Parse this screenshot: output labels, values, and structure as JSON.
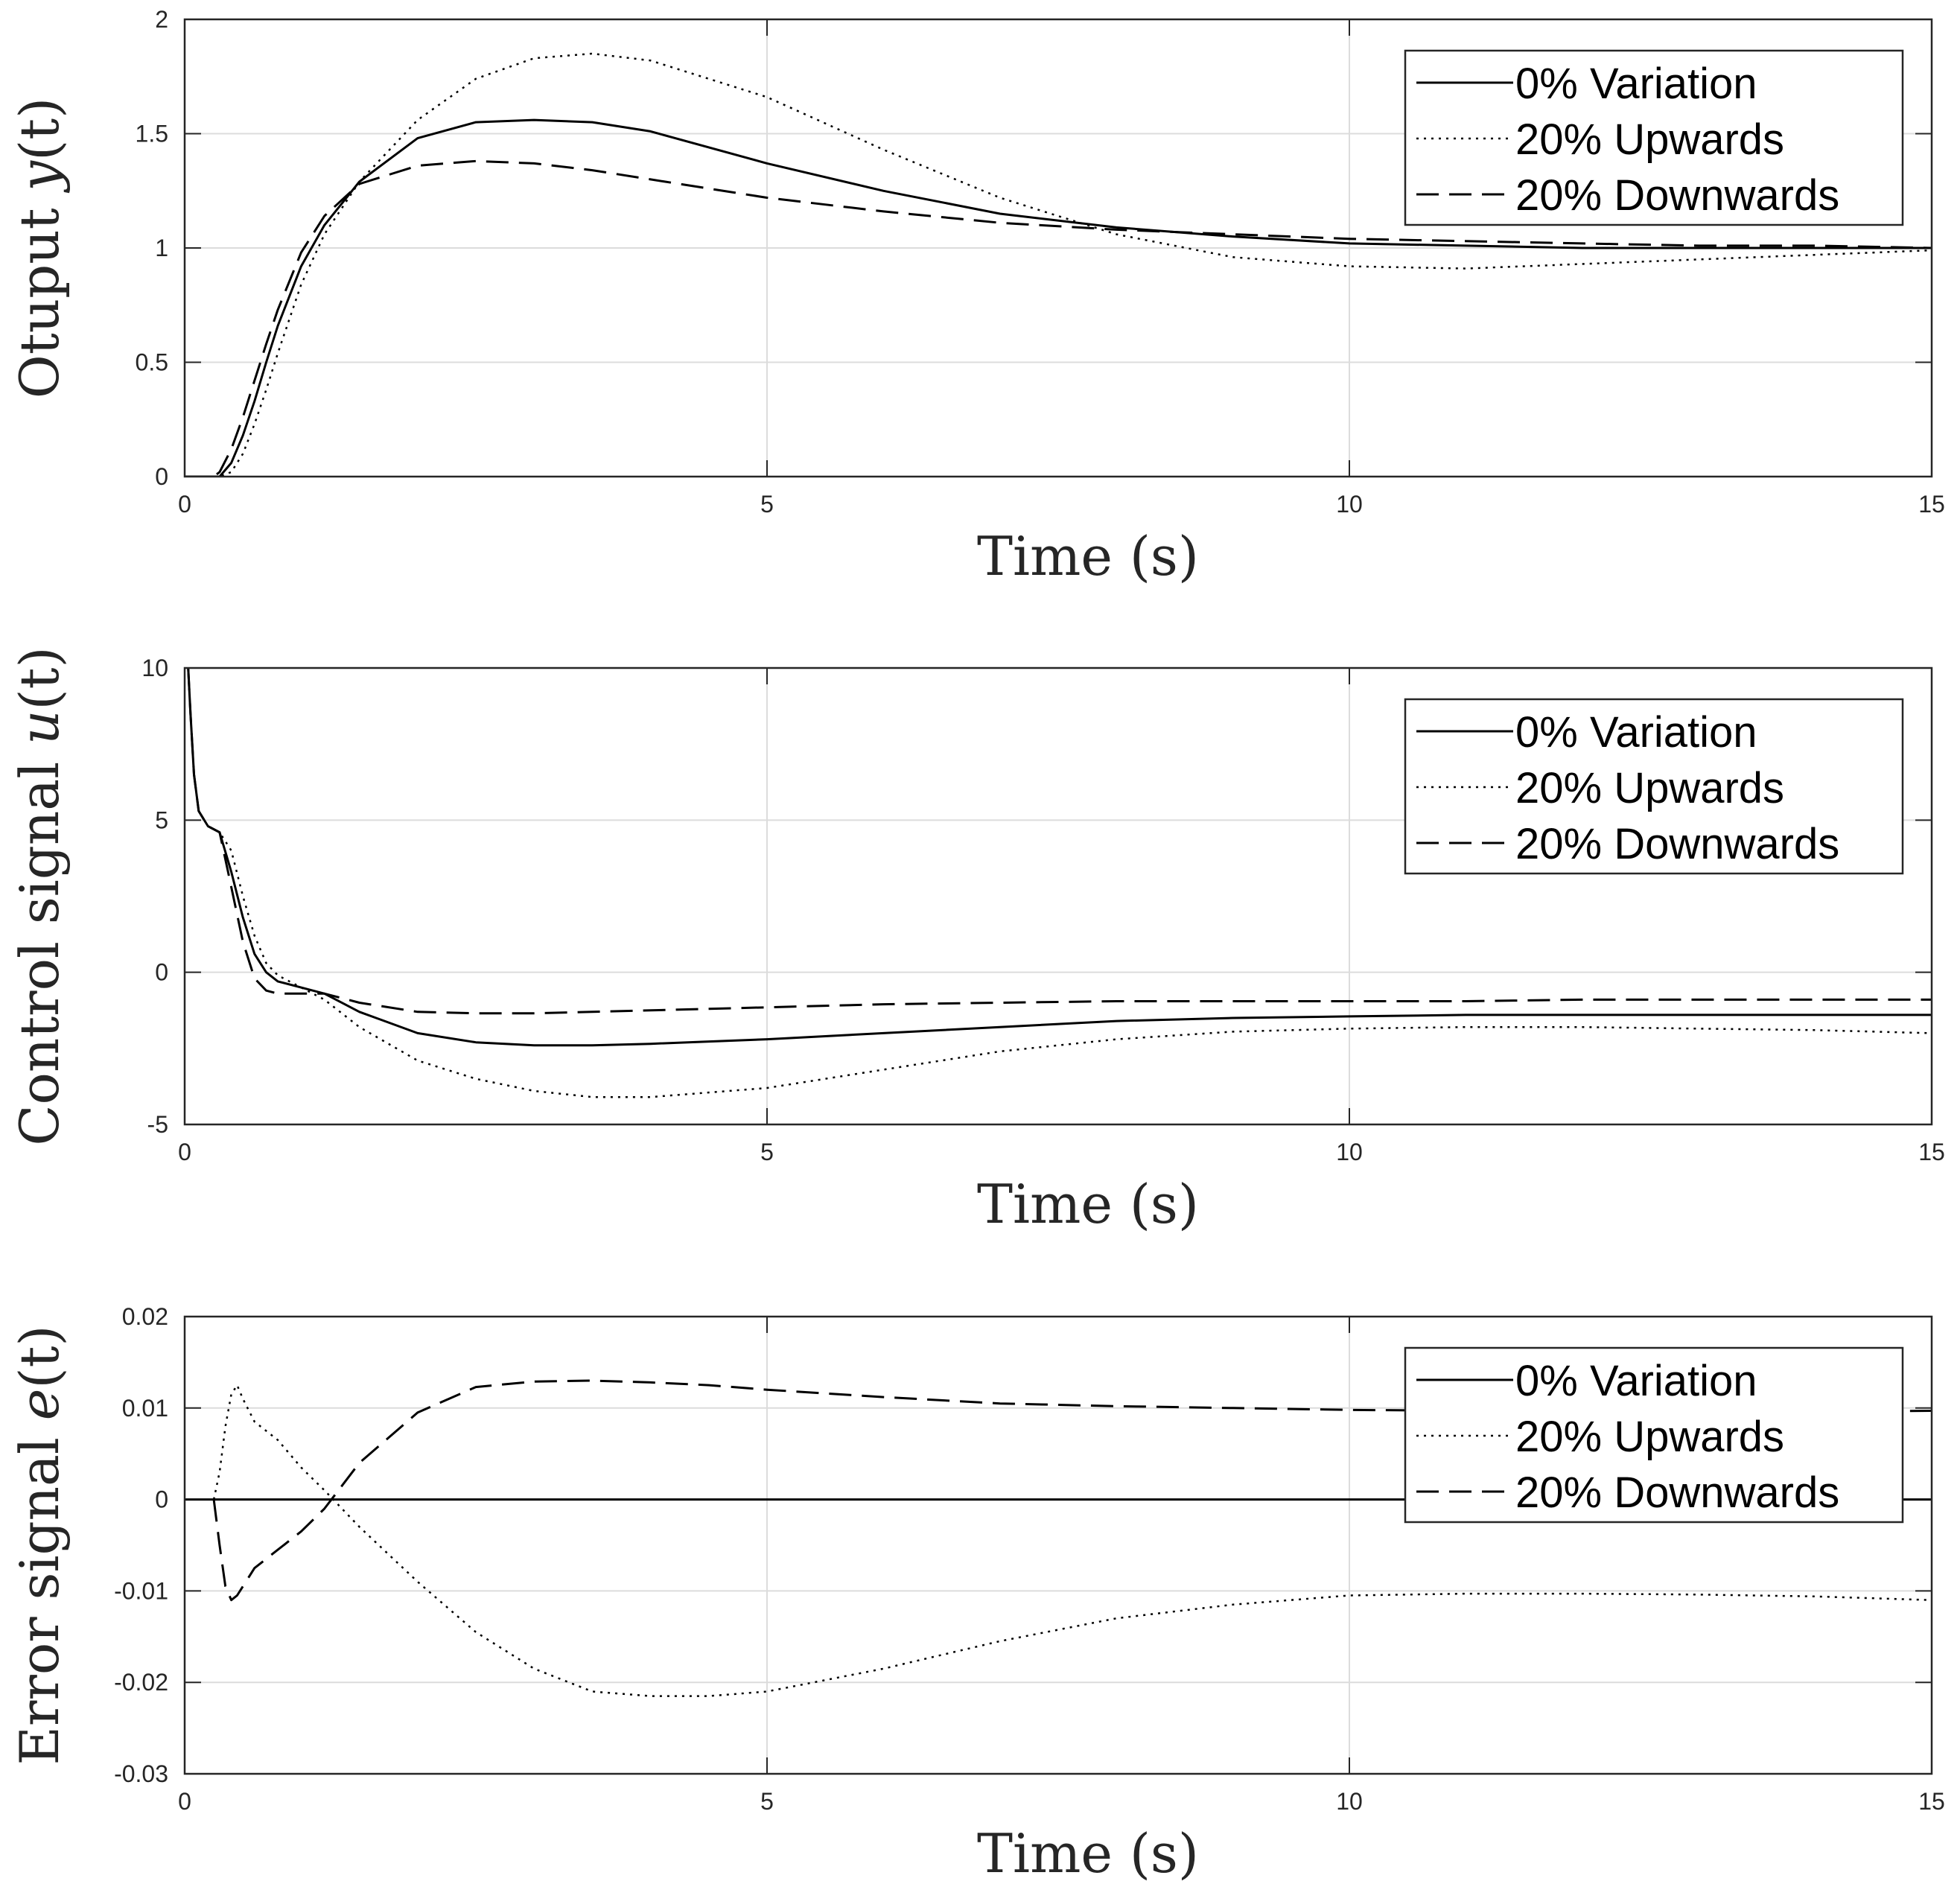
{
  "chart_data": [
    {
      "type": "line",
      "xlabel": "Time (s)",
      "ylabel_prefix": "Otuput ",
      "ylabel_var": "y",
      "ylabel_suffix": "(t)",
      "xlim": [
        0,
        15
      ],
      "ylim": [
        0,
        2
      ],
      "xticks": [
        0,
        5,
        10,
        15
      ],
      "xtick_labels": [
        "0",
        "5",
        "10",
        "15"
      ],
      "yticks": [
        0,
        0.5,
        1,
        1.5,
        2
      ],
      "ytick_labels": [
        "0",
        "0.5",
        "1",
        "1.5",
        "2"
      ],
      "grid": true,
      "legend_position": "top-right",
      "series": [
        {
          "name": "0% Variation",
          "style": "solid",
          "x": [
            0,
            0.3,
            0.4,
            0.5,
            0.6,
            0.7,
            0.8,
            1.0,
            1.2,
            1.5,
            2.0,
            2.5,
            3.0,
            3.5,
            4.0,
            5.0,
            6.0,
            7.0,
            8.0,
            9.0,
            10.0,
            11.0,
            12.0,
            13.0,
            14.0,
            15.0
          ],
          "y": [
            0,
            0,
            0.06,
            0.18,
            0.33,
            0.5,
            0.66,
            0.92,
            1.1,
            1.29,
            1.48,
            1.55,
            1.56,
            1.55,
            1.51,
            1.37,
            1.25,
            1.15,
            1.09,
            1.05,
            1.02,
            1.01,
            1.0,
            1.0,
            1.0,
            1.0
          ]
        },
        {
          "name": "20% Upwards",
          "style": "dotted",
          "x": [
            0,
            0.3,
            0.4,
            0.5,
            0.6,
            0.7,
            0.8,
            1.0,
            1.2,
            1.5,
            2.0,
            2.5,
            3.0,
            3.5,
            4.0,
            5.0,
            6.0,
            7.0,
            8.0,
            9.0,
            10.0,
            11.0,
            12.0,
            13.0,
            14.0,
            15.0
          ],
          "y": [
            0,
            0,
            0.02,
            0.1,
            0.23,
            0.38,
            0.54,
            0.84,
            1.06,
            1.29,
            1.56,
            1.74,
            1.83,
            1.85,
            1.82,
            1.66,
            1.43,
            1.22,
            1.06,
            0.96,
            0.92,
            0.91,
            0.93,
            0.95,
            0.97,
            0.99
          ]
        },
        {
          "name": "20% Downwards",
          "style": "dashed",
          "x": [
            0,
            0.25,
            0.3,
            0.4,
            0.5,
            0.6,
            0.7,
            0.8,
            1.0,
            1.2,
            1.5,
            2.0,
            2.5,
            3.0,
            3.5,
            4.0,
            5.0,
            6.0,
            7.0,
            8.0,
            9.0,
            10.0,
            11.0,
            12.0,
            13.0,
            14.0,
            15.0
          ],
          "y": [
            0,
            0,
            0.02,
            0.12,
            0.26,
            0.42,
            0.58,
            0.73,
            0.98,
            1.14,
            1.28,
            1.36,
            1.38,
            1.37,
            1.34,
            1.3,
            1.22,
            1.16,
            1.11,
            1.08,
            1.06,
            1.04,
            1.03,
            1.02,
            1.01,
            1.01,
            1.0
          ]
        }
      ],
      "legend": [
        "0% Variation",
        "20% Upwards",
        "20% Downwards"
      ]
    },
    {
      "type": "line",
      "xlabel": "Time (s)",
      "ylabel_prefix": "Control signal ",
      "ylabel_var": "u",
      "ylabel_suffix": "(t)",
      "xlim": [
        0,
        15
      ],
      "ylim": [
        -5,
        10
      ],
      "xticks": [
        0,
        5,
        10,
        15
      ],
      "xtick_labels": [
        "0",
        "5",
        "10",
        "15"
      ],
      "yticks": [
        -5,
        0,
        5,
        10
      ],
      "ytick_labels": [
        "-5",
        "0",
        "5",
        "10"
      ],
      "grid": true,
      "legend_position": "top-right",
      "series": [
        {
          "name": "0% Variation",
          "style": "solid",
          "x": [
            0.03,
            0.05,
            0.08,
            0.12,
            0.2,
            0.3,
            0.4,
            0.5,
            0.6,
            0.7,
            0.8,
            1.0,
            1.2,
            1.5,
            2.0,
            2.5,
            3.0,
            3.5,
            4.0,
            5.0,
            6.0,
            7.0,
            8.0,
            9.0,
            10.0,
            11.0,
            12.0,
            13.0,
            14.0,
            15.0
          ],
          "y": [
            10,
            8.5,
            6.5,
            5.3,
            4.8,
            4.6,
            3.3,
            1.8,
            0.6,
            0.0,
            -0.3,
            -0.5,
            -0.7,
            -1.3,
            -2.0,
            -2.3,
            -2.4,
            -2.4,
            -2.35,
            -2.2,
            -2.0,
            -1.8,
            -1.6,
            -1.5,
            -1.45,
            -1.4,
            -1.4,
            -1.4,
            -1.4,
            -1.4
          ]
        },
        {
          "name": "20% Upwards",
          "style": "dotted",
          "x": [
            0.03,
            0.05,
            0.08,
            0.12,
            0.2,
            0.3,
            0.4,
            0.5,
            0.6,
            0.7,
            0.8,
            1.0,
            1.2,
            1.5,
            2.0,
            2.5,
            3.0,
            3.5,
            4.0,
            5.0,
            6.0,
            7.0,
            8.0,
            9.0,
            10.0,
            11.0,
            12.0,
            13.0,
            14.0,
            15.0
          ],
          "y": [
            10,
            8.5,
            6.5,
            5.3,
            4.8,
            4.6,
            4.0,
            2.5,
            1.2,
            0.3,
            -0.1,
            -0.5,
            -0.9,
            -1.8,
            -2.9,
            -3.5,
            -3.9,
            -4.1,
            -4.1,
            -3.8,
            -3.2,
            -2.6,
            -2.2,
            -1.95,
            -1.85,
            -1.8,
            -1.8,
            -1.85,
            -1.9,
            -2.0
          ]
        },
        {
          "name": "20% Downwards",
          "style": "dashed",
          "x": [
            0.03,
            0.05,
            0.08,
            0.12,
            0.2,
            0.3,
            0.4,
            0.5,
            0.6,
            0.7,
            0.8,
            1.0,
            1.2,
            1.5,
            2.0,
            2.5,
            3.0,
            3.5,
            4.0,
            5.0,
            6.0,
            7.0,
            8.0,
            9.0,
            10.0,
            11.0,
            12.0,
            13.0,
            14.0,
            15.0
          ],
          "y": [
            10,
            8.5,
            6.5,
            5.3,
            4.8,
            4.6,
            2.8,
            1.0,
            -0.2,
            -0.6,
            -0.7,
            -0.7,
            -0.7,
            -1.0,
            -1.3,
            -1.35,
            -1.35,
            -1.3,
            -1.25,
            -1.15,
            -1.05,
            -1.0,
            -0.95,
            -0.95,
            -0.95,
            -0.95,
            -0.9,
            -0.9,
            -0.9,
            -0.9
          ]
        }
      ],
      "legend": [
        "0% Variation",
        "20% Upwards",
        "20% Downwards"
      ]
    },
    {
      "type": "line",
      "xlabel": "Time (s)",
      "ylabel_prefix": "Error signal ",
      "ylabel_var": "e",
      "ylabel_suffix": "(t)",
      "xlim": [
        0,
        15
      ],
      "ylim": [
        -0.03,
        0.02
      ],
      "xticks": [
        0,
        5,
        10,
        15
      ],
      "xtick_labels": [
        "0",
        "5",
        "10",
        "15"
      ],
      "yticks": [
        -0.03,
        -0.02,
        -0.01,
        0,
        0.01,
        0.02
      ],
      "ytick_labels": [
        "-0.03",
        "-0.02",
        "-0.01",
        "0",
        "0.01",
        "0.02"
      ],
      "grid": true,
      "legend_position": "top-right",
      "series": [
        {
          "name": "0% Variation",
          "style": "solid",
          "x": [
            0,
            15
          ],
          "y": [
            0,
            0
          ]
        },
        {
          "name": "20% Upwards",
          "style": "dotted",
          "x": [
            0.25,
            0.3,
            0.35,
            0.4,
            0.45,
            0.5,
            0.6,
            0.8,
            1.0,
            1.2,
            1.5,
            2.0,
            2.5,
            3.0,
            3.5,
            4.0,
            4.5,
            5.0,
            6.0,
            7.0,
            8.0,
            9.0,
            10.0,
            11.0,
            12.0,
            13.0,
            14.0,
            15.0
          ],
          "y": [
            0,
            0.003,
            0.008,
            0.0115,
            0.0125,
            0.011,
            0.0085,
            0.0065,
            0.0035,
            0.001,
            -0.003,
            -0.009,
            -0.0145,
            -0.0185,
            -0.021,
            -0.0215,
            -0.0215,
            -0.021,
            -0.0185,
            -0.0155,
            -0.013,
            -0.0115,
            -0.0105,
            -0.0103,
            -0.0103,
            -0.0104,
            -0.0106,
            -0.011
          ]
        },
        {
          "name": "20% Downwards",
          "style": "dashed",
          "x": [
            0.25,
            0.3,
            0.35,
            0.4,
            0.45,
            0.5,
            0.6,
            0.8,
            1.0,
            1.2,
            1.5,
            2.0,
            2.5,
            3.0,
            3.5,
            4.0,
            4.5,
            5.0,
            6.0,
            7.0,
            8.0,
            9.0,
            10.0,
            11.0,
            12.0,
            13.0,
            14.0,
            15.0
          ],
          "y": [
            0,
            -0.005,
            -0.0095,
            -0.011,
            -0.0105,
            -0.0095,
            -0.0075,
            -0.0055,
            -0.0035,
            -0.001,
            0.004,
            0.0095,
            0.0123,
            0.0129,
            0.013,
            0.0128,
            0.0125,
            0.012,
            0.0112,
            0.0105,
            0.0102,
            0.01,
            0.0098,
            0.0097,
            0.0096,
            0.0096,
            0.0096,
            0.0097
          ]
        }
      ],
      "legend": [
        "0% Variation",
        "20% Upwards",
        "20% Downwards"
      ]
    }
  ]
}
